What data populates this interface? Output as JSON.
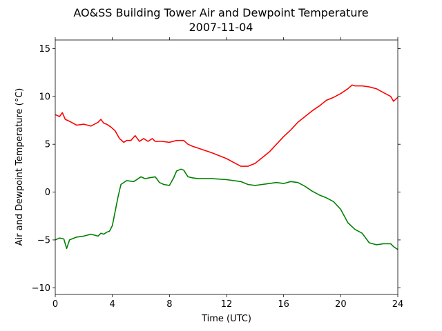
{
  "chart_data": {
    "type": "line",
    "title": "AO&SS Building Tower Air and Dewpoint Temperature",
    "subtitle": "2007-11-04",
    "xlabel": "Time (UTC)",
    "ylabel": "Air and Dewpoint Temperature (°C)",
    "xlim": [
      0,
      24
    ],
    "ylim": [
      -10.7,
      15.9
    ],
    "xticks": [
      "0",
      "4",
      "8",
      "12",
      "16",
      "20",
      "24"
    ],
    "yticks": [
      "−10",
      "−5",
      "0",
      "5",
      "10",
      "15"
    ],
    "grid": false,
    "legend": "none",
    "series": [
      {
        "color": "#ff0000",
        "x": [
          0,
          0.3,
          0.5,
          0.7,
          1.0,
          1.5,
          2.0,
          2.5,
          3.0,
          3.2,
          3.4,
          3.6,
          3.9,
          4.2,
          4.5,
          4.8,
          5.0,
          5.3,
          5.6,
          5.9,
          6.2,
          6.5,
          6.8,
          7.0,
          7.5,
          8.0,
          8.5,
          9.0,
          9.3,
          9.6,
          10.0,
          11.0,
          12.0,
          12.5,
          13.0,
          13.5,
          14.0,
          14.5,
          15.0,
          15.5,
          16.0,
          16.5,
          17.0,
          17.5,
          18.0,
          18.5,
          19.0,
          19.5,
          20.0,
          20.5,
          20.8,
          21.0,
          21.5,
          22.0,
          22.5,
          23.0,
          23.5,
          23.7,
          24.0
        ],
        "values": [
          8.1,
          7.9,
          8.3,
          7.6,
          7.4,
          7.0,
          7.1,
          6.9,
          7.3,
          7.6,
          7.2,
          7.1,
          6.8,
          6.4,
          5.6,
          5.2,
          5.4,
          5.4,
          5.9,
          5.3,
          5.6,
          5.3,
          5.6,
          5.3,
          5.3,
          5.2,
          5.4,
          5.4,
          5.0,
          4.8,
          4.6,
          4.1,
          3.5,
          3.1,
          2.7,
          2.7,
          3.0,
          3.6,
          4.2,
          5.0,
          5.8,
          6.5,
          7.3,
          7.9,
          8.5,
          9.0,
          9.6,
          9.9,
          10.3,
          10.8,
          11.2,
          11.1,
          11.1,
          11.0,
          10.8,
          10.4,
          10.0,
          9.5,
          9.9
        ]
      },
      {
        "color": "#008000",
        "x": [
          0,
          0.3,
          0.6,
          0.8,
          1.0,
          1.5,
          2.0,
          2.5,
          3.0,
          3.2,
          3.4,
          3.6,
          3.8,
          4.0,
          4.2,
          4.4,
          4.6,
          5.0,
          5.5,
          6.0,
          6.3,
          6.6,
          7.0,
          7.3,
          7.6,
          8.0,
          8.3,
          8.5,
          8.8,
          9.0,
          9.3,
          9.6,
          10.0,
          11.0,
          12.0,
          13.0,
          13.5,
          14.0,
          14.5,
          15.0,
          15.5,
          16.0,
          16.5,
          17.0,
          17.5,
          18.0,
          18.5,
          19.0,
          19.5,
          20.0,
          20.5,
          21.0,
          21.5,
          22.0,
          22.5,
          23.0,
          23.5,
          23.7,
          24.0
        ],
        "values": [
          -5.0,
          -4.8,
          -4.9,
          -5.9,
          -5.0,
          -4.7,
          -4.6,
          -4.4,
          -4.6,
          -4.3,
          -4.4,
          -4.2,
          -4.1,
          -3.5,
          -2.0,
          -0.5,
          0.8,
          1.2,
          1.1,
          1.6,
          1.4,
          1.5,
          1.6,
          1.0,
          0.8,
          0.7,
          1.5,
          2.2,
          2.4,
          2.3,
          1.6,
          1.5,
          1.4,
          1.4,
          1.3,
          1.1,
          0.8,
          0.7,
          0.8,
          0.9,
          1.0,
          0.9,
          1.1,
          1.0,
          0.6,
          0.1,
          -0.3,
          -0.6,
          -1.0,
          -1.8,
          -3.2,
          -3.9,
          -4.3,
          -5.3,
          -5.5,
          -5.4,
          -5.4,
          -5.7,
          -6.0
        ]
      }
    ]
  }
}
